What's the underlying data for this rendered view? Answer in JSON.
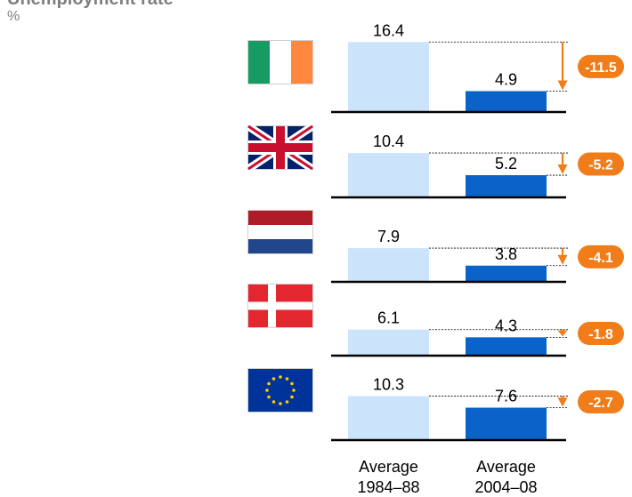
{
  "page": {
    "title": "Unemployment rate",
    "unit": "%"
  },
  "colors": {
    "bar_early": "#cce4fb",
    "bar_late": "#0a63c9",
    "accent": "#f07d1a",
    "baseline": "#000000"
  },
  "chart_data": {
    "type": "bar",
    "title": "Unemployment rate",
    "ylabel": "%",
    "categories": [
      "Average 1984–88",
      "Average 2004–08"
    ],
    "category_lines": [
      [
        "Average",
        "1984–88"
      ],
      [
        "Average",
        "2004–08"
      ]
    ],
    "panels": [
      {
        "flag": "ireland-flag-icon",
        "values": [
          16.4,
          4.9
        ],
        "value_labels": [
          "16.4",
          "4.9"
        ],
        "change": -11.5,
        "change_label": "-11.5"
      },
      {
        "flag": "united-kingdom-flag-icon",
        "values": [
          10.4,
          5.2
        ],
        "value_labels": [
          "10.4",
          "5.2"
        ],
        "change": -5.2,
        "change_label": "-5.2"
      },
      {
        "flag": "netherlands-flag-icon",
        "values": [
          7.9,
          3.8
        ],
        "value_labels": [
          "7.9",
          "3.8"
        ],
        "change": -4.1,
        "change_label": "-4.1"
      },
      {
        "flag": "denmark-flag-icon",
        "values": [
          6.1,
          4.3
        ],
        "value_labels": [
          "6.1",
          "4.3"
        ],
        "change": -1.8,
        "change_label": "-1.8"
      },
      {
        "flag": "european-union-flag-icon",
        "values": [
          10.3,
          7.6
        ],
        "value_labels": [
          "10.3",
          "7.6"
        ],
        "change": -2.7,
        "change_label": "-2.7"
      }
    ]
  }
}
